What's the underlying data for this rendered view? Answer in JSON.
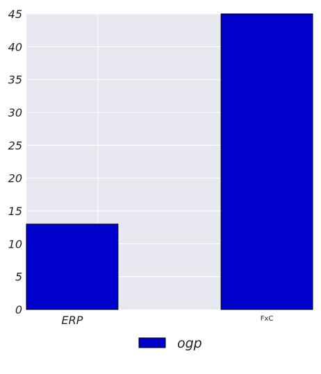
{
  "chart_data": {
    "type": "bar",
    "categories": [
      "ERP",
      "FxC"
    ],
    "series": [
      {
        "name": "ogp",
        "values": [
          13,
          45
        ]
      }
    ],
    "ylim": [
      0,
      45
    ],
    "yticks": [
      0,
      5,
      10,
      15,
      20,
      25,
      30,
      35,
      40,
      45
    ],
    "grid": true,
    "legend_position": "bottom-center",
    "colors": {
      "bar": "#0000cc",
      "plot_background": "#e8e8f0",
      "grid": "#ffffff"
    }
  }
}
